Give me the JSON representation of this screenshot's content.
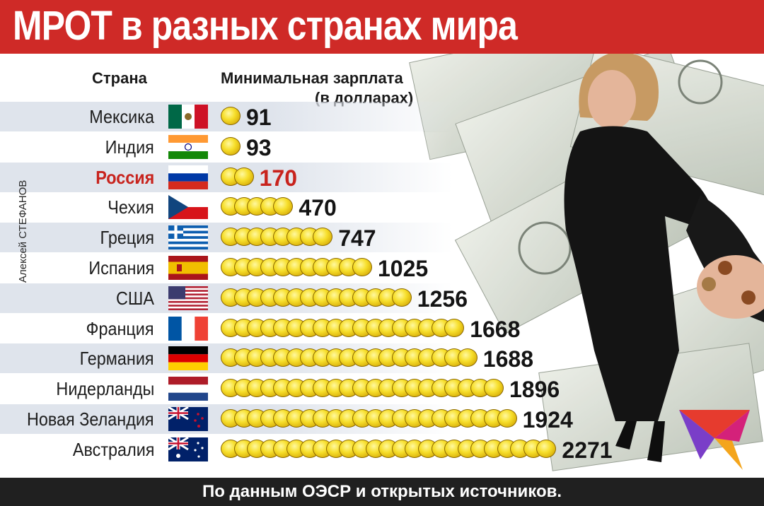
{
  "header": {
    "title": "МРОТ в разных странах мира"
  },
  "table": {
    "col_country": "Страна",
    "col_wage": "Минимальная зарплата",
    "col_wage_sub": "(в долларах)"
  },
  "chart_data": {
    "type": "bar",
    "title": "МРОТ в разных странах мира",
    "xlabel": "Минимальная зарплата (в долларах)",
    "ylabel": "Страна",
    "categories": [
      "Мексика",
      "Индия",
      "Россия",
      "Чехия",
      "Греция",
      "Испания",
      "США",
      "Франция",
      "Германия",
      "Нидерланды",
      "Новая Зеландия",
      "Австралия"
    ],
    "values": [
      91,
      93,
      170,
      470,
      747,
      1025,
      1256,
      1668,
      1688,
      1896,
      1924,
      2271
    ],
    "highlight": "Россия",
    "highlight_color": "#c8231d",
    "marker": "gold-coin"
  },
  "rows": [
    {
      "country": "Мексика",
      "value": "91",
      "coins": 1,
      "flag": "mexico-flag-icon"
    },
    {
      "country": "Индия",
      "value": "93",
      "coins": 1,
      "flag": "india-flag-icon"
    },
    {
      "country": "Россия",
      "value": "170",
      "coins": 2,
      "flag": "russia-flag-icon"
    },
    {
      "country": "Чехия",
      "value": "470",
      "coins": 5,
      "flag": "czech-flag-icon"
    },
    {
      "country": "Греция",
      "value": "747",
      "coins": 8,
      "flag": "greece-flag-icon"
    },
    {
      "country": "Испания",
      "value": "1025",
      "coins": 11,
      "flag": "spain-flag-icon"
    },
    {
      "country": "США",
      "value": "1256",
      "coins": 14,
      "flag": "usa-flag-icon"
    },
    {
      "country": "Франция",
      "value": "1668",
      "coins": 18,
      "flag": "france-flag-icon"
    },
    {
      "country": "Германия",
      "value": "1688",
      "coins": 19,
      "flag": "germany-flag-icon"
    },
    {
      "country": "Нидерланды",
      "value": "1896",
      "coins": 21,
      "flag": "netherlands-flag-icon"
    },
    {
      "country": "Новая Зеландия",
      "value": "1924",
      "coins": 22,
      "flag": "new-zealand-flag-icon"
    },
    {
      "country": "Австралия",
      "value": "2271",
      "coins": 25,
      "flag": "australia-flag-icon"
    }
  ],
  "credit": "Алексей СТЕФАНОВ",
  "footer": {
    "source": "По данным ОЭСР и открытых источников."
  },
  "colors": {
    "header": "#cf2a27",
    "footer": "#202020",
    "coin": "#f7df2c"
  }
}
